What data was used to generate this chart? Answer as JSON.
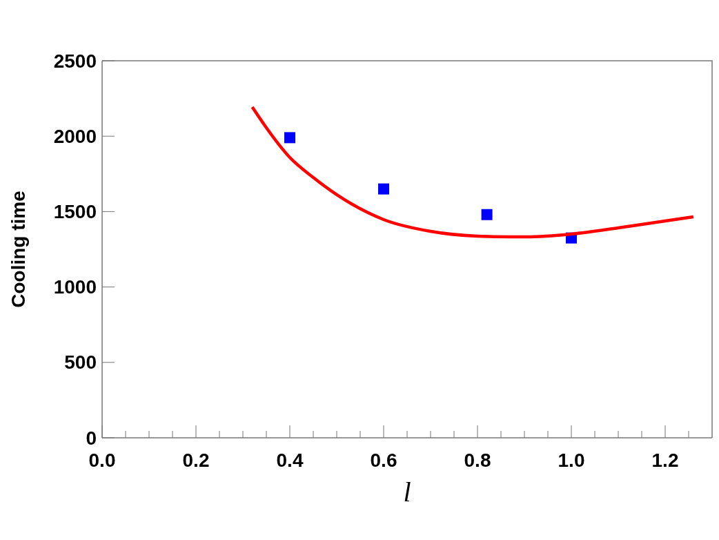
{
  "chart_data": {
    "type": "scatter",
    "xlabel": "l",
    "ylabel": "Cooling time",
    "xlim": [
      0,
      1.3
    ],
    "ylim": [
      0,
      2500
    ],
    "xticks": [
      {
        "value": 0,
        "label": "0.0"
      },
      {
        "value": 0.05,
        "label": null
      },
      {
        "value": 0.1,
        "label": null
      },
      {
        "value": 0.15,
        "label": null
      },
      {
        "value": 0.2,
        "label": "0.2"
      },
      {
        "value": 0.25,
        "label": null
      },
      {
        "value": 0.3,
        "label": null
      },
      {
        "value": 0.35,
        "label": null
      },
      {
        "value": 0.4,
        "label": "0.4"
      },
      {
        "value": 0.45,
        "label": null
      },
      {
        "value": 0.5,
        "label": null
      },
      {
        "value": 0.55,
        "label": null
      },
      {
        "value": 0.6,
        "label": "0.6"
      },
      {
        "value": 0.65,
        "label": null
      },
      {
        "value": 0.7,
        "label": null
      },
      {
        "value": 0.75,
        "label": null
      },
      {
        "value": 0.8,
        "label": "0.8"
      },
      {
        "value": 0.85,
        "label": null
      },
      {
        "value": 0.9,
        "label": null
      },
      {
        "value": 0.95,
        "label": null
      },
      {
        "value": 1.0,
        "label": "1.0"
      },
      {
        "value": 1.05,
        "label": null
      },
      {
        "value": 1.1,
        "label": null
      },
      {
        "value": 1.15,
        "label": null
      },
      {
        "value": 1.2,
        "label": "1.2"
      },
      {
        "value": 1.25,
        "label": null
      }
    ],
    "yticks": [
      0,
      500,
      1000,
      1500,
      2000,
      2500
    ],
    "grid": false,
    "series": [
      {
        "marker": "square",
        "color": "#0000ff",
        "x": [
          0.4,
          0.6,
          0.82,
          1.0
        ],
        "values": [
          1990,
          1650,
          1480,
          1325
        ]
      },
      {
        "type": "line",
        "marker": "none",
        "line_style": "solid",
        "color": "#ff0000",
        "x": [
          0.32,
          0.35,
          0.4,
          0.45,
          0.5,
          0.6,
          0.7,
          0.8,
          0.87,
          0.9,
          1.0,
          1.1,
          1.2,
          1.26
        ],
        "values": [
          2193,
          2056,
          1859,
          1726,
          1612,
          1447,
          1369,
          1337,
          1332,
          1332,
          1351,
          1392,
          1438,
          1465
        ]
      }
    ]
  }
}
